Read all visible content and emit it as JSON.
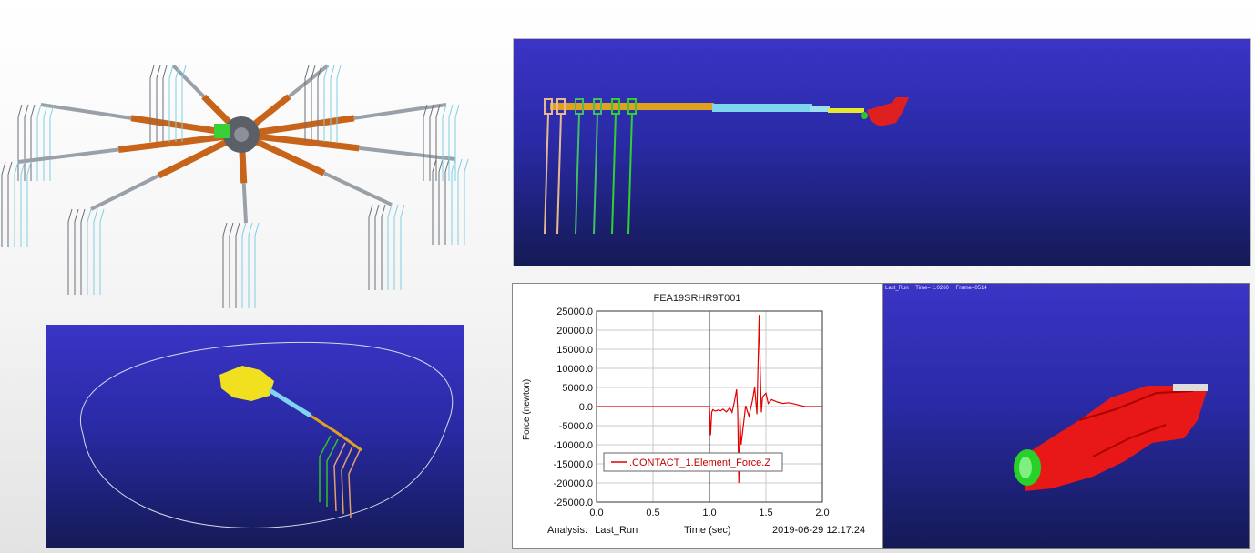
{
  "plot": {
    "title": "FEA19SRHR9T001",
    "ylabel": "Force (newton)",
    "xlabel": "Time (sec)",
    "analysis_label": "Analysis:",
    "analysis_value": "Last_Run",
    "timestamp": "2019-06-29 12:17:24",
    "legend": ".CONTACT_1.Element_Force.Z",
    "colors": {
      "series": "#e00000",
      "grid": "#c8c8c8"
    }
  },
  "chart_data": {
    "type": "line",
    "title": "FEA19SRHR9T001",
    "xlabel": "Time (sec)",
    "ylabel": "Force (newton)",
    "xlim": [
      0.0,
      2.0
    ],
    "ylim": [
      -25000.0,
      25000.0
    ],
    "x_ticks": [
      "0.0",
      "0.5",
      "1.0",
      "1.5",
      "2.0"
    ],
    "y_ticks": [
      "25000.0",
      "20000.0",
      "15000.0",
      "10000.0",
      "5000.0",
      "0.0",
      "-5000.0",
      "-10000.0",
      "-15000.0",
      "-20000.0",
      "-25000.0"
    ],
    "legend_position": "bottom-center",
    "grid": true,
    "series": [
      {
        "name": ".CONTACT_1.Element_Force.Z",
        "color": "#e00000",
        "x": [
          0.0,
          1.0,
          1.01,
          1.02,
          1.03,
          1.05,
          1.08,
          1.1,
          1.12,
          1.15,
          1.18,
          1.2,
          1.22,
          1.24,
          1.25,
          1.26,
          1.27,
          1.28,
          1.3,
          1.32,
          1.35,
          1.38,
          1.4,
          1.42,
          1.44,
          1.45,
          1.46,
          1.47,
          1.5,
          1.52,
          1.55,
          1.6,
          1.65,
          1.7,
          1.75,
          1.8,
          1.85,
          2.0
        ],
        "y": [
          0,
          0,
          -7500,
          -1500,
          -800,
          -1200,
          -900,
          -1100,
          -700,
          -1400,
          -300,
          -1500,
          1200,
          4500,
          -1200,
          -20000,
          -3000,
          -10000,
          -5000,
          200,
          -2500,
          1500,
          5000,
          -2000,
          24000,
          9000,
          -1500,
          2500,
          3500,
          800,
          1800,
          1200,
          800,
          1000,
          700,
          300,
          0,
          0
        ]
      }
    ]
  },
  "anim": {
    "run": "Last_Run",
    "time": "Time= 1.0260",
    "frame": "Frame=0514"
  }
}
